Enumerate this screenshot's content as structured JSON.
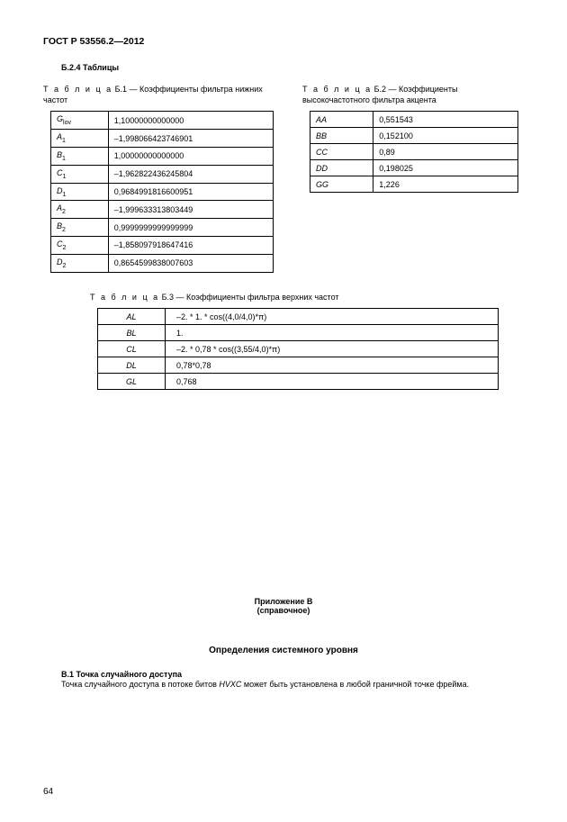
{
  "header": "ГОСТ Р 53556.2—2012",
  "section_heading": "Б.2.4 Таблицы",
  "table1": {
    "caption_prefix": "Т а б л и ц а",
    "caption_num": "Б.1 — Коэффициенты фильтра нижних частот",
    "rows": [
      {
        "symbol_base": "G",
        "symbol_sub": "lov",
        "value": "1,10000000000000"
      },
      {
        "symbol_base": "A",
        "symbol_sub": "1",
        "value": "–1,998066423746901"
      },
      {
        "symbol_base": "B",
        "symbol_sub": "1",
        "value": "1,00000000000000"
      },
      {
        "symbol_base": "C",
        "symbol_sub": "1",
        "value": "–1,962822436245804"
      },
      {
        "symbol_base": "D",
        "symbol_sub": "1",
        "value": "0,9684991816600951"
      },
      {
        "symbol_base": "A",
        "symbol_sub": "2",
        "value": "–1,999633313803449"
      },
      {
        "symbol_base": "B",
        "symbol_sub": "2",
        "value": "0,9999999999999999"
      },
      {
        "symbol_base": "C",
        "symbol_sub": "2",
        "value": "–1,858097918647416"
      },
      {
        "symbol_base": "D",
        "symbol_sub": "2",
        "value": "0,8654599838007603"
      }
    ]
  },
  "table2": {
    "caption_prefix": "Т а б л и ц а",
    "caption_num": "Б.2 — Коэффициенты высокочастотного фильтра акцента",
    "rows": [
      {
        "symbol": "AA",
        "value": "0,551543"
      },
      {
        "symbol": "BB",
        "value": "0,152100"
      },
      {
        "symbol": "CC",
        "value": "0,89"
      },
      {
        "symbol": "DD",
        "value": "0,198025"
      },
      {
        "symbol": "GG",
        "value": "1,226"
      }
    ]
  },
  "table3": {
    "caption_prefix": "Т а б л и ц а",
    "caption_num": "Б.3 — Коэффициенты фильтра верхних частот",
    "rows": [
      {
        "symbol": "AL",
        "value": "–2. * 1. * cos((4,0/4,0)*π)"
      },
      {
        "symbol": "BL",
        "value": "1."
      },
      {
        "symbol": "CL",
        "value": "–2. * 0,78 * cos((3,55/4,0)*π)"
      },
      {
        "symbol": "DL",
        "value": "0,78*0,78"
      },
      {
        "symbol": "GL",
        "value": "0,768"
      }
    ]
  },
  "appendix": {
    "title": "Приложение В",
    "note": "(справочное)"
  },
  "system_heading": "Определения системного уровня",
  "b1": {
    "heading": "В.1 Точка случайного доступа",
    "text_before": "Точка случайного доступа в потоке битов ",
    "text_italic": "HVXC",
    "text_after": " может быть установлена в любой граничной точке фрейма."
  },
  "page_number": "64"
}
